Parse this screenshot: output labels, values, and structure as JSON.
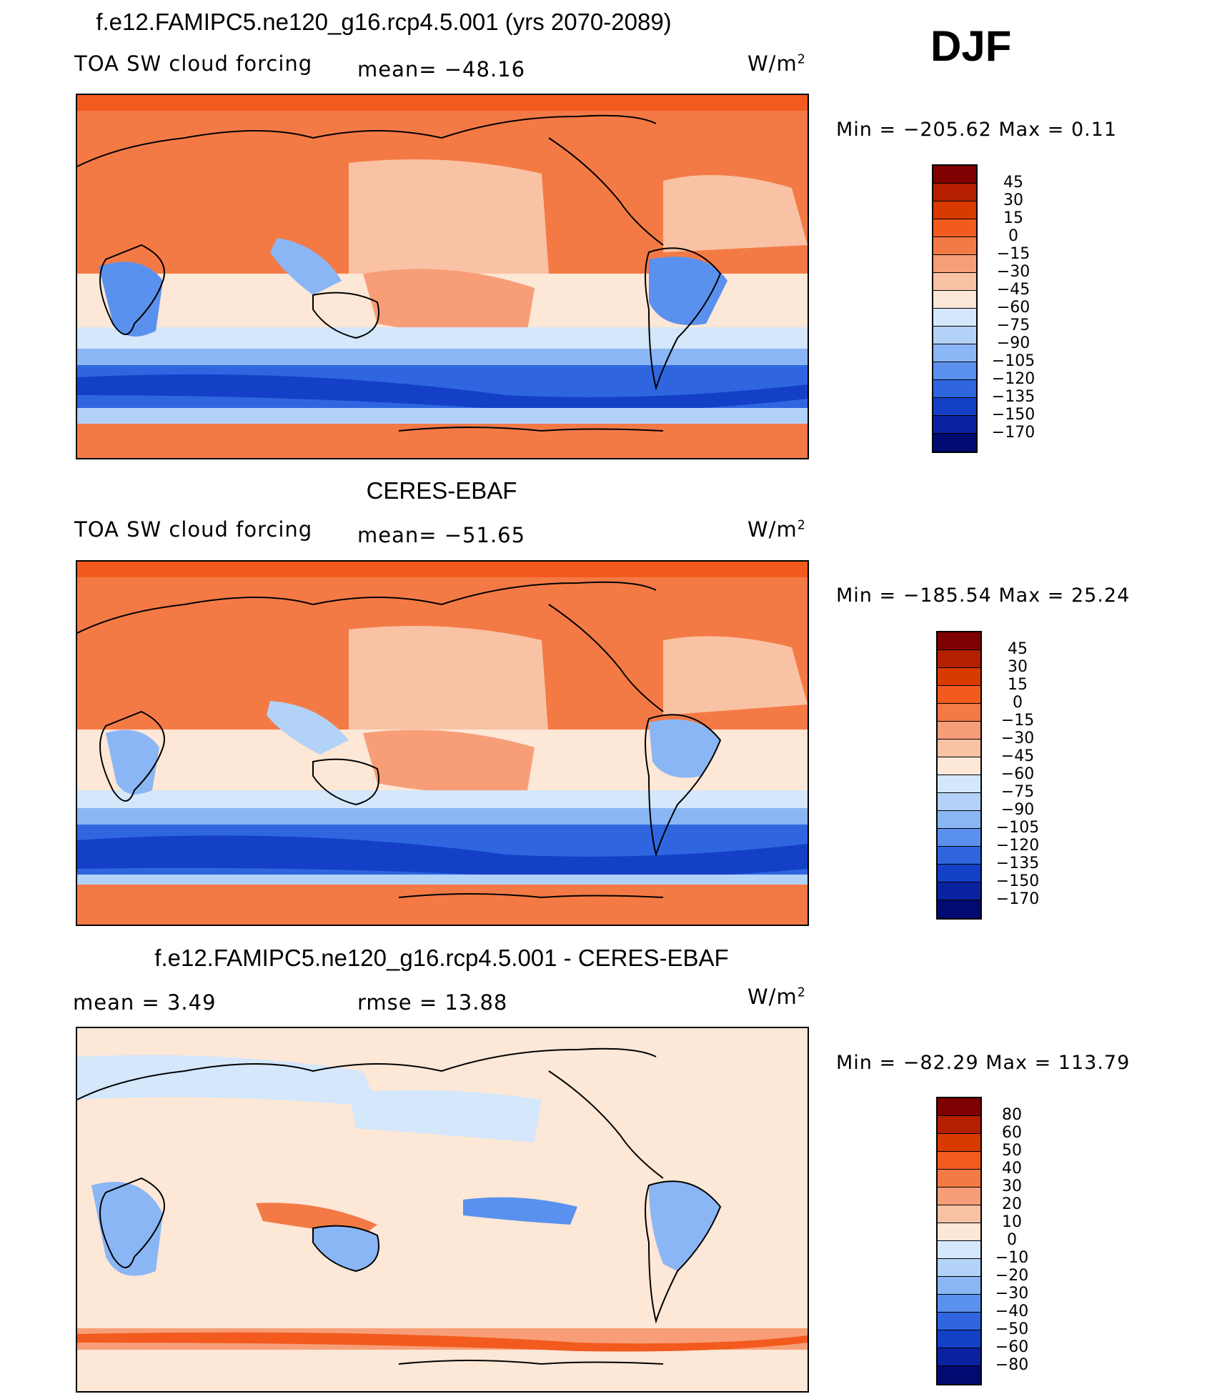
{
  "season": "DJF",
  "units": "W/m",
  "units_sup": "2",
  "chart_data": [
    {
      "type": "heatmap",
      "title": "f.e12.FAMIPC5.ne120_g16.rcp4.5.001 (yrs 2070-2089)",
      "variable": "TOA SW cloud forcing",
      "stat1": "mean=  −48.16",
      "stat2": "",
      "minmax": "Min  =  −205.62  Max  =     0.11",
      "min": -205.62,
      "max": 0.11,
      "mean": -48.16,
      "levels": [
        "45",
        "30",
        "15",
        "0",
        "−15",
        "−30",
        "−45",
        "−60",
        "−75",
        "−90",
        "−105",
        "−120",
        "−135",
        "−150",
        "−170"
      ],
      "colors": [
        "#7f0000",
        "#b41f00",
        "#d93a00",
        "#f25a1e",
        "#f47a45",
        "#f79e78",
        "#f9c2a4",
        "#fde7d6",
        "#d4e7fb",
        "#b3d2f8",
        "#8bb6f5",
        "#5b91ee",
        "#2f66e0",
        "#1440c8",
        "#0a22a0",
        "#000a70"
      ]
    },
    {
      "type": "heatmap",
      "title": "CERES-EBAF",
      "variable": "TOA SW cloud forcing",
      "stat1": "mean=  −51.65",
      "stat2": "",
      "minmax": "Min  =  −185.54  Max  =    25.24",
      "min": -185.54,
      "max": 25.24,
      "mean": -51.65,
      "levels": [
        "45",
        "30",
        "15",
        "0",
        "−15",
        "−30",
        "−45",
        "−60",
        "−75",
        "−90",
        "−105",
        "−120",
        "−135",
        "−150",
        "−170"
      ],
      "colors": [
        "#7f0000",
        "#b41f00",
        "#d93a00",
        "#f25a1e",
        "#f47a45",
        "#f79e78",
        "#f9c2a4",
        "#fde7d6",
        "#d4e7fb",
        "#b3d2f8",
        "#8bb6f5",
        "#5b91ee",
        "#2f66e0",
        "#1440c8",
        "#0a22a0",
        "#000a70"
      ]
    },
    {
      "type": "heatmap",
      "title": "f.e12.FAMIPC5.ne120_g16.rcp4.5.001 - CERES-EBAF",
      "variable": "",
      "stat1": "mean  =     3.49",
      "stat2": "rmse  =    13.88",
      "minmax": "Min  =  −82.29  Max  =  113.79",
      "min": -82.29,
      "max": 113.79,
      "mean": 3.49,
      "rmse": 13.88,
      "levels": [
        "80",
        "60",
        "50",
        "40",
        "30",
        "20",
        "10",
        "0",
        "−10",
        "−20",
        "−30",
        "−40",
        "−50",
        "−60",
        "−80"
      ],
      "colors": [
        "#7f0000",
        "#b41f00",
        "#d93a00",
        "#f25a1e",
        "#f47a45",
        "#f79e78",
        "#f9c2a4",
        "#fde7d6",
        "#d4e7fb",
        "#b3d2f8",
        "#8bb6f5",
        "#5b91ee",
        "#2f66e0",
        "#1440c8",
        "#0a22a0",
        "#000a70"
      ]
    }
  ]
}
